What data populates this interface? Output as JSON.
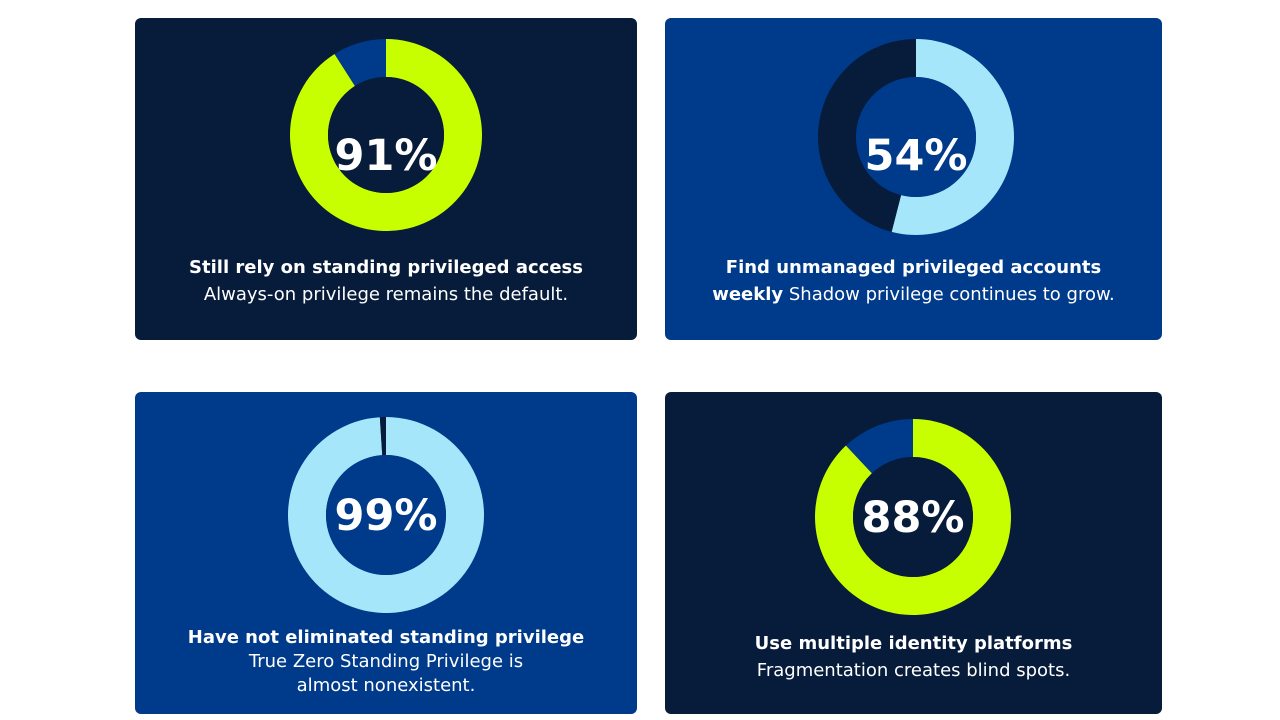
{
  "chart_data": [
    {
      "type": "pie",
      "variant": "donut",
      "center_label": "91%",
      "values": [
        91,
        9
      ],
      "colors": [
        "#c8ff00",
        "#003a8a"
      ],
      "card_background": "#061c3a",
      "headline": "Still rely on standing privileged access",
      "subtext": "Always-on privilege remains the default."
    },
    {
      "type": "pie",
      "variant": "donut",
      "center_label": "54%",
      "values": [
        54,
        46
      ],
      "colors": [
        "#a6e6fb",
        "#061c3a"
      ],
      "card_background": "#003a8a",
      "headline_line1": "Find unmanaged privileged accounts",
      "headline_line2": "weekly",
      "subtext": "Shadow privilege continues to grow."
    },
    {
      "type": "pie",
      "variant": "donut",
      "center_label": "99%",
      "values": [
        99,
        1
      ],
      "colors": [
        "#a6e6fb",
        "#061c3a"
      ],
      "card_background": "#003a8a",
      "headline": "Have not eliminated standing privilege",
      "subtext": "True Zero Standing Privilege is almost nonexistent."
    },
    {
      "type": "pie",
      "variant": "donut",
      "center_label": "88%",
      "values": [
        88,
        12
      ],
      "colors": [
        "#c8ff00",
        "#003a8a"
      ],
      "card_background": "#061c3a",
      "headline": "Use multiple identity platforms",
      "subtext": "Fragmentation creates blind spots."
    }
  ]
}
